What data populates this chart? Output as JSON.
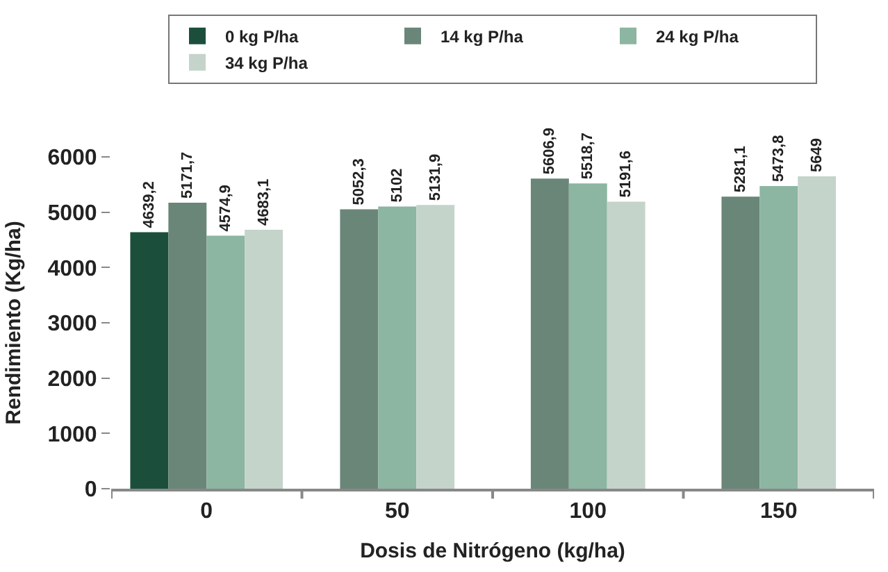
{
  "chart_data": {
    "type": "bar",
    "xlabel": "Dosis de Nitrógeno (kg/ha)",
    "ylabel": "Rendimiento (Kg/ha)",
    "categories": [
      "0",
      "50",
      "100",
      "150"
    ],
    "series": [
      {
        "name": "0 kg P/ha",
        "color": "#1b4f3c",
        "values": [
          4639.2,
          null,
          null,
          null
        ],
        "value_labels": [
          "4639,2",
          null,
          null,
          null
        ]
      },
      {
        "name": "14 kg P/ha",
        "color": "#6a8679",
        "values": [
          5171.7,
          5052.3,
          5606.9,
          5281.1
        ],
        "value_labels": [
          "5171,7",
          "5052,3",
          "5606,9",
          "5281,1"
        ]
      },
      {
        "name": "24 kg P/ha",
        "color": "#8cb5a2",
        "values": [
          4574.9,
          5102,
          5518.7,
          5473.8
        ],
        "value_labels": [
          "4574,9",
          "5102",
          "5518,7",
          "5473,8"
        ]
      },
      {
        "name": "34 kg P/ha",
        "color": "#c5d4cb",
        "values": [
          4683.1,
          5131.9,
          5191.6,
          5649
        ],
        "value_labels": [
          "4683,1",
          "5131,9",
          "5191,6",
          "5649"
        ]
      }
    ],
    "ylim": [
      0,
      6000
    ],
    "yticks": [
      0,
      1000,
      2000,
      3000,
      4000,
      5000,
      6000
    ],
    "legend": "top"
  }
}
